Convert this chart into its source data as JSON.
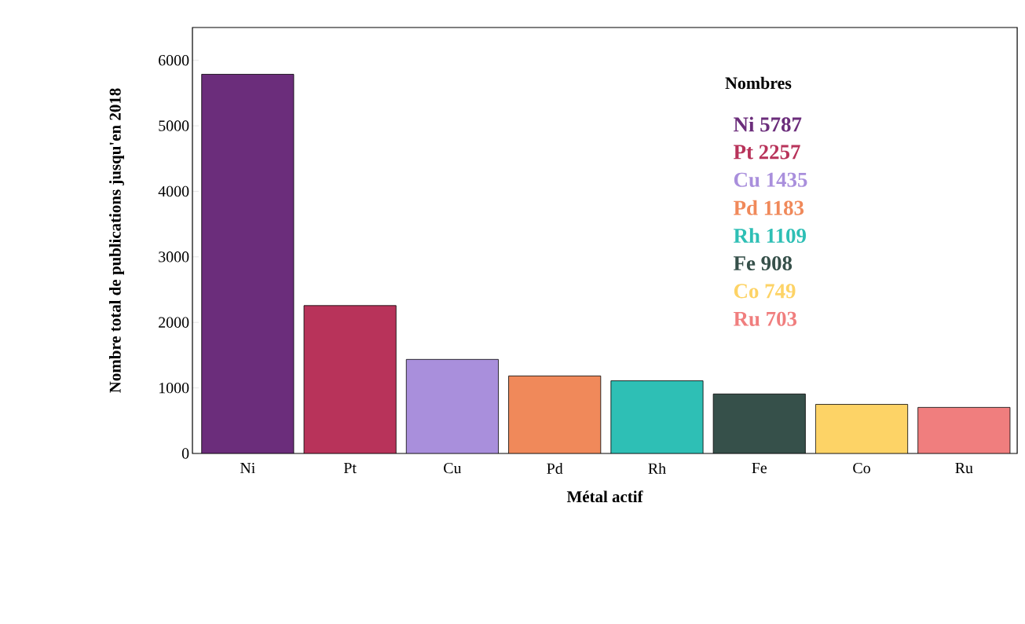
{
  "chart_data": {
    "type": "bar",
    "xlabel": "Métal actif",
    "ylabel": "Nombre total de publications jusqu'en 2018",
    "legend_title": "Nombres",
    "categories": [
      "Ni",
      "Pt",
      "Cu",
      "Pd",
      "Rh",
      "Fe",
      "Co",
      "Ru"
    ],
    "values": [
      5787,
      2257,
      1435,
      1183,
      1109,
      908,
      749,
      703
    ],
    "colors": [
      "#6b2d7b",
      "#b8335a",
      "#a98fdc",
      "#f0895a",
      "#2ebfb5",
      "#36504a",
      "#fdd366",
      "#f07e7e"
    ],
    "annotations": [
      "Ni 5787",
      "Pt 2257",
      "Cu 1435",
      "Pd 1183",
      "Rh 1109",
      "Fe 908",
      "Co 749",
      "Ru 703"
    ],
    "ylim": [
      0,
      6500
    ],
    "yticks": [
      0,
      1000,
      2000,
      3000,
      4000,
      5000,
      6000
    ],
    "grid": false
  }
}
